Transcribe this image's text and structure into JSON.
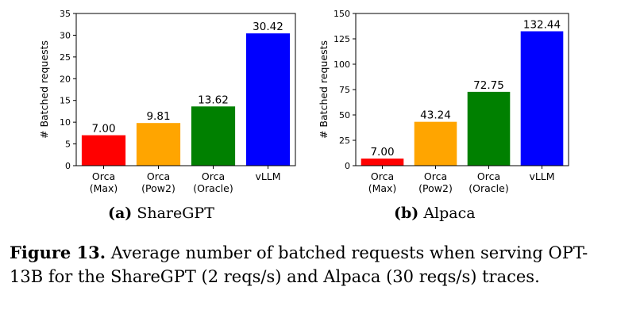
{
  "chart_data": [
    {
      "type": "bar",
      "id": "sharegpt",
      "subcaption_label": "(a)",
      "subcaption_text": "ShareGPT",
      "ylabel": "# Batched requests",
      "ylim": [
        0,
        35
      ],
      "yticks": [
        0,
        5,
        10,
        15,
        20,
        25,
        30,
        35
      ],
      "categories": [
        [
          "Orca",
          "(Max)"
        ],
        [
          "Orca",
          "(Pow2)"
        ],
        [
          "Orca",
          "(Oracle)"
        ],
        [
          "vLLM"
        ]
      ],
      "values": [
        7.0,
        9.81,
        13.62,
        30.42
      ],
      "value_labels": [
        "7.00",
        "9.81",
        "13.62",
        "30.42"
      ],
      "colors": [
        "#ff0000",
        "#ffa500",
        "#008000",
        "#0000ff"
      ]
    },
    {
      "type": "bar",
      "id": "alpaca",
      "subcaption_label": "(b)",
      "subcaption_text": "Alpaca",
      "ylabel": "# Batched requests",
      "ylim": [
        0,
        150
      ],
      "yticks": [
        0,
        25,
        50,
        75,
        100,
        125,
        150
      ],
      "categories": [
        [
          "Orca",
          "(Max)"
        ],
        [
          "Orca",
          "(Pow2)"
        ],
        [
          "Orca",
          "(Oracle)"
        ],
        [
          "vLLM"
        ]
      ],
      "values": [
        7.0,
        43.24,
        72.75,
        132.44
      ],
      "value_labels": [
        "7.00",
        "43.24",
        "72.75",
        "132.44"
      ],
      "colors": [
        "#ff0000",
        "#ffa500",
        "#008000",
        "#0000ff"
      ]
    }
  ],
  "caption": {
    "label": "Figure 13.",
    "text": " Average number of batched requests when serving OPT-13B for the ShareGPT (2 reqs/s) and Alpaca (30 reqs/s) traces."
  }
}
